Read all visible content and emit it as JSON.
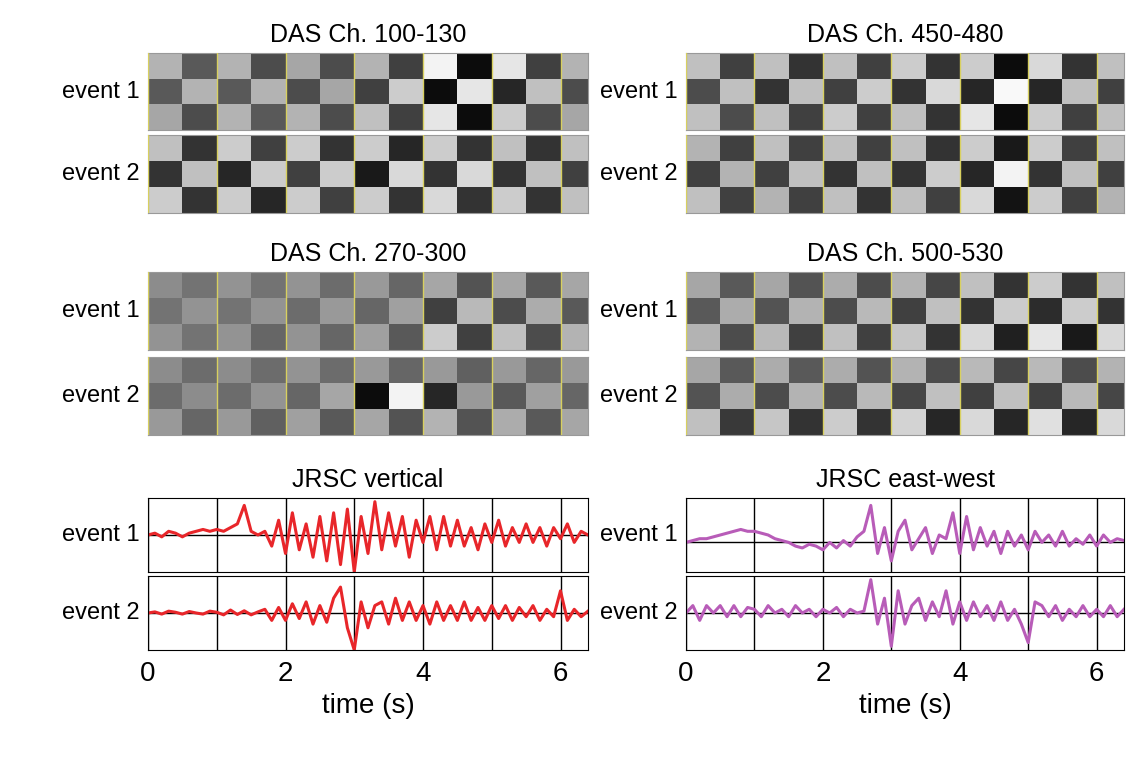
{
  "chart_data": [
    {
      "type": "heatmap",
      "title": "DAS Ch. 100-130",
      "ylabel": "event 1",
      "xlim": [
        0,
        6.4
      ],
      "xticks": [
        0,
        1,
        2,
        3,
        4,
        5,
        6
      ],
      "tick_labels": false,
      "grid": true,
      "color": "#d8d060",
      "time_edges": [
        0,
        0.5,
        1,
        1.5,
        2,
        2.5,
        3,
        3.5,
        4,
        4.5,
        5,
        5.5,
        6,
        6.5
      ],
      "clim": [
        -1,
        1
      ],
      "cells": [
        [
          0.4,
          -0.3,
          0.4,
          -0.4,
          0.3,
          -0.4,
          0.4,
          -0.5,
          0.9,
          -0.9,
          0.8,
          -0.5,
          0.4
        ],
        [
          -0.3,
          0.4,
          -0.3,
          0.4,
          -0.4,
          0.3,
          -0.5,
          0.6,
          -0.9,
          0.8,
          -0.7,
          0.5,
          -0.4
        ],
        [
          0.3,
          -0.4,
          0.4,
          -0.3,
          0.4,
          -0.4,
          0.5,
          -0.5,
          0.8,
          -0.9,
          0.6,
          -0.4,
          0.3
        ]
      ]
    },
    {
      "type": "heatmap",
      "ylabel": "event 2",
      "xlim": [
        0,
        6.4
      ],
      "xticks": [
        0,
        1,
        2,
        3,
        4,
        5,
        6
      ],
      "tick_labels": false,
      "grid": true,
      "color": "#d8d060",
      "time_edges": [
        0,
        0.5,
        1,
        1.5,
        2,
        2.5,
        3,
        3.5,
        4,
        4.5,
        5,
        5.5,
        6,
        6.5
      ],
      "clim": [
        -1,
        1
      ],
      "cells": [
        [
          0.5,
          -0.6,
          0.6,
          -0.5,
          0.6,
          -0.6,
          0.6,
          -0.7,
          0.6,
          -0.6,
          0.5,
          -0.6,
          0.5
        ],
        [
          -0.6,
          0.5,
          -0.7,
          0.6,
          -0.5,
          0.6,
          -0.8,
          0.7,
          -0.6,
          0.7,
          -0.6,
          0.5,
          -0.5
        ],
        [
          0.6,
          -0.6,
          0.6,
          -0.7,
          0.6,
          -0.5,
          0.6,
          -0.6,
          0.7,
          -0.6,
          0.6,
          -0.6,
          0.5
        ]
      ]
    },
    {
      "type": "heatmap",
      "title": "DAS Ch. 270-300",
      "ylabel": "event 1",
      "xlim": [
        0,
        6.4
      ],
      "xticks": [
        0,
        1,
        2,
        3,
        4,
        5,
        6
      ],
      "tick_labels": false,
      "grid": true,
      "color": "#d8d060",
      "time_edges": [
        0,
        0.5,
        1,
        1.5,
        2,
        2.5,
        3,
        3.5,
        4,
        4.5,
        5,
        5.5,
        6,
        6.5
      ],
      "clim": [
        -1,
        1
      ],
      "cells": [
        [
          0.1,
          -0.1,
          0.15,
          -0.1,
          0.15,
          -0.15,
          0.2,
          -0.2,
          0.3,
          -0.35,
          0.3,
          -0.3,
          0.3
        ],
        [
          -0.1,
          0.15,
          -0.1,
          0.15,
          -0.15,
          0.2,
          -0.2,
          0.25,
          -0.5,
          0.45,
          -0.4,
          0.35,
          -0.3
        ],
        [
          0.15,
          -0.1,
          0.15,
          -0.2,
          0.15,
          -0.2,
          0.25,
          -0.3,
          0.6,
          -0.5,
          0.5,
          -0.4,
          0.4
        ]
      ]
    },
    {
      "type": "heatmap",
      "ylabel": "event 2",
      "xlim": [
        0,
        6.4
      ],
      "xticks": [
        0,
        1,
        2,
        3,
        4,
        5,
        6
      ],
      "tick_labels": false,
      "grid": true,
      "color": "#d8d060",
      "time_edges": [
        0,
        0.5,
        1,
        1.5,
        2,
        2.5,
        3,
        3.5,
        4,
        4.5,
        5,
        5.5,
        6,
        6.5
      ],
      "clim": [
        -1,
        1
      ],
      "cells": [
        [
          0.1,
          -0.15,
          0.1,
          -0.15,
          0.15,
          -0.15,
          0.2,
          -0.2,
          0.2,
          -0.25,
          0.2,
          -0.2,
          0.2
        ],
        [
          -0.15,
          0.1,
          -0.15,
          0.15,
          -0.2,
          0.3,
          -0.9,
          0.9,
          -0.7,
          0.2,
          -0.3,
          0.25,
          -0.2
        ],
        [
          0.2,
          -0.2,
          0.2,
          -0.25,
          0.25,
          -0.3,
          0.3,
          -0.35,
          0.4,
          -0.35,
          0.35,
          -0.3,
          0.3
        ]
      ]
    },
    {
      "type": "line",
      "title": "JRSC vertical",
      "ylabel": "event 1",
      "xlim": [
        0,
        6.4
      ],
      "ylim": [
        -1,
        1
      ],
      "yticks": [
        0
      ],
      "xticks": [
        0,
        {
          "value": 1,
          "label": null
        },
        2,
        {
          "value": 3,
          "label": null
        },
        4,
        {
          "value": 5,
          "label": null
        },
        6
      ],
      "tick_labels": false,
      "grid": true,
      "color": "#e8262a",
      "x": [
        0,
        0.1,
        0.2,
        0.3,
        0.4,
        0.5,
        0.6,
        0.7,
        0.8,
        0.9,
        1,
        1.1,
        1.2,
        1.3,
        1.4,
        1.5,
        1.6,
        1.7,
        1.8,
        1.9,
        2,
        2.1,
        2.2,
        2.3,
        2.4,
        2.5,
        2.6,
        2.7,
        2.8,
        2.9,
        3,
        3.1,
        3.2,
        3.3,
        3.4,
        3.5,
        3.6,
        3.7,
        3.8,
        3.9,
        4,
        4.1,
        4.2,
        4.3,
        4.4,
        4.5,
        4.6,
        4.7,
        4.8,
        4.9,
        5,
        5.1,
        5.2,
        5.3,
        5.4,
        5.5,
        5.6,
        5.7,
        5.8,
        5.9,
        6,
        6.1,
        6.2,
        6.3,
        6.4
      ],
      "values": [
        0,
        0.05,
        -0.05,
        0.1,
        0.05,
        -0.05,
        0.05,
        0.1,
        0.15,
        0.1,
        0.15,
        0.1,
        0.2,
        0.3,
        0.8,
        0.1,
        0.0,
        0.1,
        -0.3,
        0.4,
        -0.5,
        0.6,
        -0.4,
        0.3,
        -0.6,
        0.5,
        -0.7,
        0.6,
        -0.8,
        0.7,
        -1.0,
        0.5,
        -0.5,
        0.9,
        -0.4,
        0.6,
        -0.3,
        0.5,
        -0.6,
        0.4,
        -0.2,
        0.5,
        -0.4,
        0.5,
        -0.3,
        0.4,
        -0.3,
        0.2,
        -0.4,
        0.3,
        -0.2,
        0.4,
        -0.3,
        0.2,
        -0.2,
        0.3,
        -0.2,
        0.2,
        -0.3,
        0.2,
        -0.1,
        0.3,
        -0.2,
        0.1,
        0.0
      ]
    },
    {
      "type": "line",
      "ylabel": "event 2",
      "xlabel": "time (s)",
      "xlim": [
        0,
        6.4
      ],
      "ylim": [
        -1,
        1
      ],
      "yticks": [
        0
      ],
      "xticks": [
        0,
        {
          "value": 1,
          "label": null
        },
        2,
        {
          "value": 3,
          "label": null
        },
        4,
        {
          "value": 5,
          "label": null
        },
        6
      ],
      "tick_labels": "x",
      "grid": true,
      "color": "#e8262a",
      "x": [
        0,
        0.1,
        0.2,
        0.3,
        0.4,
        0.5,
        0.6,
        0.7,
        0.8,
        0.9,
        1,
        1.1,
        1.2,
        1.3,
        1.4,
        1.5,
        1.6,
        1.7,
        1.8,
        1.9,
        2,
        2.1,
        2.2,
        2.3,
        2.4,
        2.5,
        2.6,
        2.7,
        2.8,
        2.9,
        3,
        3.1,
        3.2,
        3.3,
        3.4,
        3.5,
        3.6,
        3.7,
        3.8,
        3.9,
        4,
        4.1,
        4.2,
        4.3,
        4.4,
        4.5,
        4.6,
        4.7,
        4.8,
        4.9,
        5,
        5.1,
        5.2,
        5.3,
        5.4,
        5.5,
        5.6,
        5.7,
        5.8,
        5.9,
        6,
        6.1,
        6.2,
        6.3,
        6.4
      ],
      "values": [
        0,
        0.03,
        -0.03,
        0.05,
        0.02,
        -0.03,
        0.04,
        0,
        -0.03,
        0.05,
        0.02,
        -0.05,
        0.08,
        -0.04,
        0.06,
        -0.05,
        0.03,
        0.1,
        -0.2,
        0.15,
        -0.2,
        0.25,
        -0.15,
        0.3,
        -0.3,
        0.2,
        -0.25,
        0.4,
        0.7,
        -0.4,
        -1.0,
        0.3,
        -0.4,
        0.2,
        0.3,
        -0.3,
        0.4,
        -0.2,
        0.3,
        -0.2,
        0.2,
        -0.3,
        0.3,
        -0.2,
        0.2,
        -0.2,
        0.3,
        -0.2,
        0.15,
        -0.2,
        0.2,
        -0.15,
        0.2,
        -0.2,
        0.15,
        -0.1,
        0.2,
        -0.2,
        0.1,
        -0.1,
        0.6,
        -0.2,
        0.1,
        -0.1,
        0.05
      ]
    },
    {
      "type": "heatmap",
      "title": "DAS Ch. 450-480",
      "ylabel": "event 1",
      "xlim": [
        0,
        6.4
      ],
      "xticks": [
        0,
        1,
        2,
        3,
        4,
        5,
        6
      ],
      "tick_labels": false,
      "grid": true,
      "color": "#d8d060",
      "time_edges": [
        0,
        0.5,
        1,
        1.5,
        2,
        2.5,
        3,
        3.5,
        4,
        4.5,
        5,
        5.5,
        6,
        6.5
      ],
      "clim": [
        -1,
        1
      ],
      "cells": [
        [
          0.5,
          -0.5,
          0.5,
          -0.6,
          0.5,
          -0.5,
          0.6,
          -0.6,
          0.6,
          -0.9,
          0.7,
          -0.6,
          0.5
        ],
        [
          -0.4,
          0.5,
          -0.6,
          0.5,
          -0.5,
          0.6,
          -0.6,
          0.7,
          -0.7,
          0.95,
          -0.7,
          0.5,
          -0.5
        ],
        [
          0.5,
          -0.4,
          0.5,
          -0.5,
          0.6,
          -0.5,
          0.5,
          -0.6,
          0.8,
          -0.9,
          0.6,
          -0.5,
          0.5
        ]
      ]
    },
    {
      "type": "heatmap",
      "ylabel": "event 2",
      "xlim": [
        0,
        6.4
      ],
      "xticks": [
        0,
        1,
        2,
        3,
        4,
        5,
        6
      ],
      "tick_labels": false,
      "grid": true,
      "color": "#d8d060",
      "time_edges": [
        0,
        0.5,
        1,
        1.5,
        2,
        2.5,
        3,
        3.5,
        4,
        4.5,
        5,
        5.5,
        6,
        6.5
      ],
      "clim": [
        -1,
        1
      ],
      "cells": [
        [
          0.4,
          -0.5,
          0.5,
          -0.5,
          0.5,
          -0.5,
          0.5,
          -0.6,
          0.6,
          -0.8,
          0.6,
          -0.5,
          0.5
        ],
        [
          -0.5,
          0.4,
          -0.5,
          0.5,
          -0.6,
          0.5,
          -0.6,
          0.6,
          -0.7,
          0.9,
          -0.6,
          0.5,
          -0.5
        ],
        [
          0.5,
          -0.5,
          0.4,
          -0.5,
          0.5,
          -0.6,
          0.5,
          -0.5,
          0.7,
          -0.85,
          0.6,
          -0.5,
          0.4
        ]
      ]
    },
    {
      "type": "heatmap",
      "title": "DAS Ch. 500-530",
      "ylabel": "event 1",
      "xlim": [
        0,
        6.4
      ],
      "xticks": [
        0,
        1,
        2,
        3,
        4,
        5,
        6
      ],
      "tick_labels": false,
      "grid": true,
      "color": "#d8d060",
      "time_edges": [
        0,
        0.5,
        1,
        1.5,
        2,
        2.5,
        3,
        3.5,
        4,
        4.5,
        5,
        5.5,
        6,
        6.5
      ],
      "clim": [
        -1,
        1
      ],
      "cells": [
        [
          0.3,
          -0.3,
          0.3,
          -0.35,
          0.35,
          -0.4,
          0.4,
          -0.45,
          0.5,
          -0.6,
          0.6,
          -0.6,
          0.5
        ],
        [
          -0.3,
          0.35,
          -0.35,
          0.4,
          -0.4,
          0.45,
          -0.5,
          0.5,
          -0.6,
          0.6,
          -0.65,
          0.6,
          -0.6
        ],
        [
          0.4,
          -0.4,
          0.45,
          -0.5,
          0.5,
          -0.5,
          0.55,
          -0.6,
          0.7,
          -0.75,
          0.8,
          -0.8,
          0.7
        ]
      ]
    },
    {
      "type": "heatmap",
      "ylabel": "event 2",
      "xlim": [
        0,
        6.4
      ],
      "xticks": [
        0,
        1,
        2,
        3,
        4,
        5,
        6
      ],
      "tick_labels": false,
      "grid": true,
      "color": "#d8d060",
      "time_edges": [
        0,
        0.5,
        1,
        1.5,
        2,
        2.5,
        3,
        3.5,
        4,
        4.5,
        5,
        5.5,
        6,
        6.5
      ],
      "clim": [
        -1,
        1
      ],
      "cells": [
        [
          0.3,
          -0.3,
          0.35,
          -0.3,
          0.35,
          -0.35,
          0.4,
          -0.4,
          0.45,
          -0.45,
          0.45,
          -0.4,
          0.4
        ],
        [
          -0.35,
          0.35,
          -0.4,
          0.4,
          -0.4,
          0.45,
          -0.45,
          0.5,
          -0.5,
          0.5,
          -0.5,
          0.45,
          -0.45
        ],
        [
          0.5,
          -0.55,
          0.55,
          -0.6,
          0.6,
          -0.6,
          0.65,
          -0.7,
          0.7,
          -0.7,
          0.75,
          -0.7,
          0.7
        ]
      ]
    },
    {
      "type": "line",
      "title": "JRSC east-west",
      "ylabel": "event 1",
      "xlim": [
        0,
        6.4
      ],
      "ylim": [
        -0.8,
        1.2
      ],
      "yticks": [
        0
      ],
      "xticks": [
        0,
        {
          "value": 1,
          "label": null
        },
        2,
        {
          "value": 3,
          "label": null
        },
        4,
        {
          "value": 5,
          "label": null
        },
        6
      ],
      "tick_labels": false,
      "grid": true,
      "color": "#b85cb8",
      "x": [
        0,
        0.1,
        0.2,
        0.3,
        0.4,
        0.5,
        0.6,
        0.7,
        0.8,
        0.9,
        1,
        1.1,
        1.2,
        1.3,
        1.4,
        1.5,
        1.6,
        1.7,
        1.8,
        1.9,
        2,
        2.1,
        2.2,
        2.3,
        2.4,
        2.5,
        2.6,
        2.7,
        2.8,
        2.9,
        3,
        3.1,
        3.2,
        3.3,
        3.4,
        3.5,
        3.6,
        3.7,
        3.8,
        3.9,
        4,
        4.1,
        4.2,
        4.3,
        4.4,
        4.5,
        4.6,
        4.7,
        4.8,
        4.9,
        5,
        5.1,
        5.2,
        5.3,
        5.4,
        5.5,
        5.6,
        5.7,
        5.8,
        5.9,
        6,
        6.1,
        6.2,
        6.3,
        6.4
      ],
      "values": [
        0,
        0.05,
        0.1,
        0.1,
        0.15,
        0.2,
        0.25,
        0.3,
        0.35,
        0.3,
        0.3,
        0.25,
        0.2,
        0.1,
        0.05,
        0,
        -0.1,
        -0.15,
        -0.05,
        -0.1,
        -0.2,
        0,
        -0.15,
        0.05,
        -0.1,
        0.15,
        0.3,
        1.0,
        -0.3,
        0.4,
        -0.5,
        0.3,
        0.6,
        -0.2,
        0.1,
        0.4,
        -0.3,
        0.2,
        0.1,
        0.8,
        -0.3,
        0.7,
        -0.2,
        0.4,
        -0.1,
        0.3,
        -0.3,
        0.3,
        -0.1,
        0.2,
        -0.2,
        0.3,
        0,
        0.2,
        -0.1,
        0.3,
        -0.1,
        0.1,
        -0.05,
        0.2,
        -0.1,
        0.2,
        0,
        0.1,
        0.05
      ]
    },
    {
      "type": "line",
      "ylabel": "event 2",
      "xlabel": "time (s)",
      "xlim": [
        0,
        6.4
      ],
      "ylim": [
        -1,
        1
      ],
      "yticks": [
        0
      ],
      "xticks": [
        0,
        {
          "value": 1,
          "label": null
        },
        2,
        {
          "value": 3,
          "label": null
        },
        4,
        {
          "value": 5,
          "label": null
        },
        6
      ],
      "tick_labels": "x",
      "grid": true,
      "color": "#b85cb8",
      "x": [
        0,
        0.1,
        0.2,
        0.3,
        0.4,
        0.5,
        0.6,
        0.7,
        0.8,
        0.9,
        1,
        1.1,
        1.2,
        1.3,
        1.4,
        1.5,
        1.6,
        1.7,
        1.8,
        1.9,
        2,
        2.1,
        2.2,
        2.3,
        2.4,
        2.5,
        2.6,
        2.7,
        2.8,
        2.9,
        3,
        3.1,
        3.2,
        3.3,
        3.4,
        3.5,
        3.6,
        3.7,
        3.8,
        3.9,
        4,
        4.1,
        4.2,
        4.3,
        4.4,
        4.5,
        4.6,
        4.7,
        4.8,
        4.9,
        5,
        5.1,
        5.2,
        5.3,
        5.4,
        5.5,
        5.6,
        5.7,
        5.8,
        5.9,
        6,
        6.1,
        6.2,
        6.3,
        6.4
      ],
      "values": [
        0,
        0.2,
        -0.2,
        0.2,
        0,
        0.2,
        -0.1,
        0.2,
        -0.1,
        0.15,
        0.1,
        -0.1,
        0.2,
        0,
        0.1,
        -0.1,
        0.2,
        0,
        0.1,
        -0.1,
        0.1,
        0,
        0.15,
        -0.1,
        0.1,
        0,
        0.05,
        0.9,
        -0.3,
        0.4,
        -0.9,
        0.6,
        -0.3,
        0.2,
        0.4,
        -0.2,
        0.3,
        -0.1,
        0.6,
        -0.3,
        0.3,
        -0.2,
        0.3,
        -0.1,
        0.2,
        -0.2,
        0.3,
        -0.2,
        0.1,
        -0.3,
        -0.8,
        0.3,
        0.2,
        -0.1,
        0.2,
        -0.2,
        0.1,
        -0.1,
        0.2,
        -0.1,
        0.1,
        -0.1,
        0.2,
        -0.1,
        0.1
      ]
    }
  ]
}
